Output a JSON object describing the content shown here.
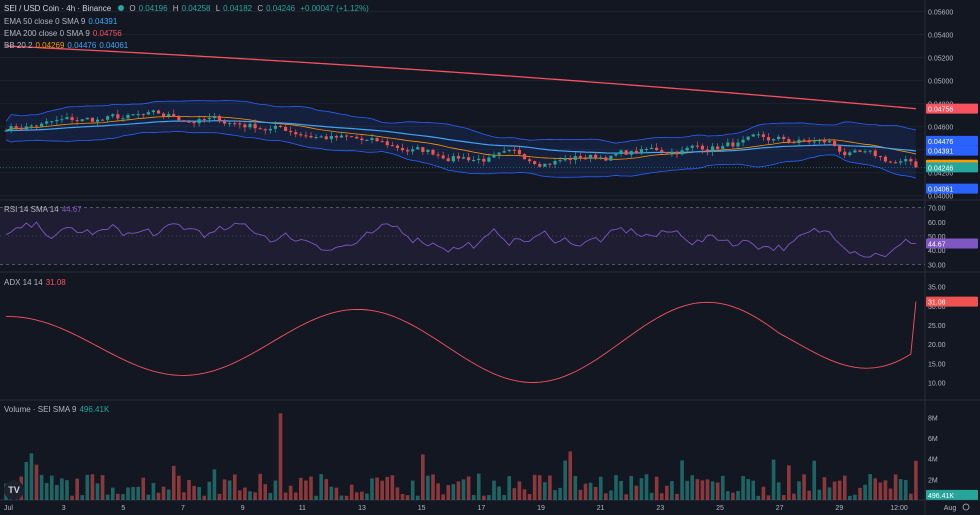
{
  "header": {
    "symbol": "SEI / USD Coin · 4h · Binance",
    "o_label": "O",
    "o": "0.04196",
    "h_label": "H",
    "h": "0.04258",
    "l_label": "L",
    "l": "0.04182",
    "c_label": "C",
    "c": "0.04246",
    "change": "+0.00047 (+1.12%)"
  },
  "indicators": {
    "ema50": {
      "label": "EMA 50 close 0 SMA 9",
      "value": "0.04391"
    },
    "ema200": {
      "label": "EMA 200 close 0 SMA 9",
      "value": "0.04756"
    },
    "bb": {
      "label": "BB 20 2",
      "v1": "0.04269",
      "v2": "0.04476",
      "v3": "0.04061"
    },
    "rsi": {
      "label": "RSI 14 SMA 14",
      "value": "44.67"
    },
    "adx": {
      "label": "ADX 14 14",
      "value": "31.08"
    },
    "volume": {
      "label": "Volume · SEI SMA 9",
      "value": "496.41K"
    }
  },
  "colors": {
    "bg": "#131722",
    "up": "#26a69a",
    "down": "#ef5350",
    "ema50": "#42a5f5",
    "ema200": "#f7525f",
    "bbBasis": "#ff9800",
    "bbBand": "#2962ff",
    "rsi": "#7e57c2",
    "adx": "#f7525f",
    "grid": "#1e222d",
    "axisText": "#b2b5be"
  },
  "price_axis": {
    "ticks": [
      "0.05600",
      "0.05400",
      "0.05200",
      "0.05000",
      "0.04800",
      "0.04600",
      "0.04400",
      "0.04200",
      "0.04000"
    ],
    "tags": [
      {
        "text": "0.04756",
        "color": "#f7525f",
        "v": 0.04756
      },
      {
        "text": "0.04476",
        "color": "#2962ff",
        "v": 0.04476
      },
      {
        "text": "0.04391",
        "color": "#2962ff",
        "v": 0.04391
      },
      {
        "text": "0.04269",
        "color": "#ff9800",
        "v": 0.04269
      },
      {
        "text": "0.04246",
        "color": "#26a69a",
        "v": 0.04246
      },
      {
        "text": "0.04061",
        "color": "#2962ff",
        "v": 0.04061
      }
    ],
    "range": [
      0.0398,
      0.057
    ]
  },
  "rsi_axis": {
    "ticks": [
      "70.00",
      "60.00",
      "50.00",
      "40.00",
      "30.00"
    ],
    "tag": "44.67",
    "range": [
      26,
      74
    ]
  },
  "adx_axis": {
    "ticks": [
      "35.00",
      "30.00",
      "25.00",
      "20.00",
      "15.00",
      "10.00"
    ],
    "tag": "31.08",
    "range": [
      6,
      38
    ]
  },
  "vol_axis": {
    "ticks": [
      "8M",
      "6M",
      "4M",
      "2M"
    ],
    "tag": "496.41K",
    "range": [
      0,
      9.5
    ]
  },
  "time_axis": [
    "Jul",
    "3",
    "5",
    "7",
    "9",
    "11",
    "13",
    "15",
    "17",
    "19",
    "21",
    "23",
    "25",
    "27",
    "29",
    "12:00",
    "Aug"
  ],
  "chart_data": {
    "type": "candlestick",
    "price_start": 0.046,
    "price_end": 0.04246,
    "ema200_range": [
      0.053,
      0.04756
    ],
    "volume_peak_M": 8.4
  }
}
